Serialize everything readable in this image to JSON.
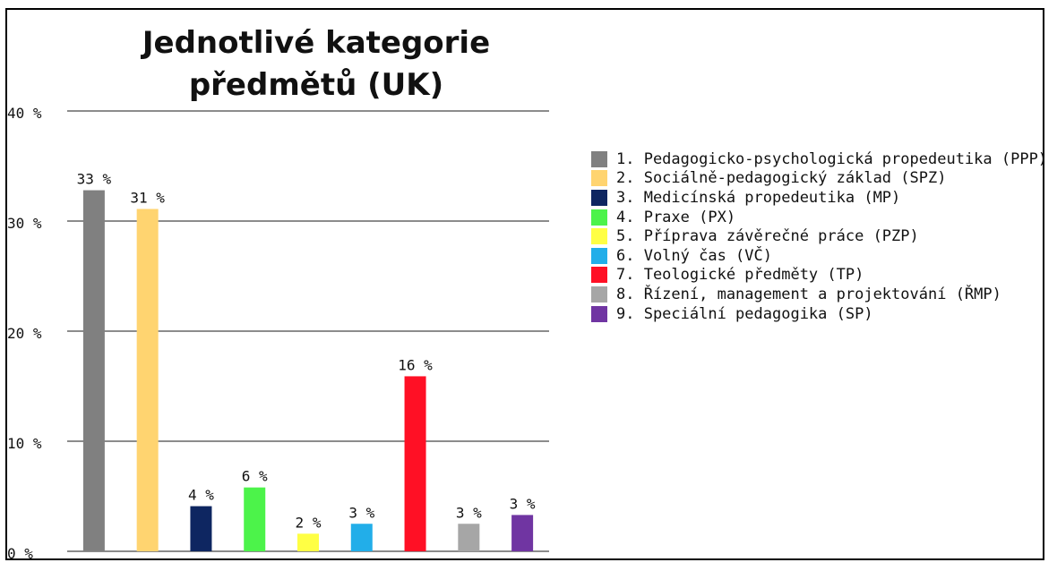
{
  "chart_data": {
    "type": "bar",
    "title": "Jednotlivé kategorie předmětů (UK)",
    "xlabel": "",
    "ylabel": "",
    "ylim": [
      0,
      40
    ],
    "yticks": [
      0,
      10,
      20,
      30,
      40
    ],
    "ytick_labels": [
      "0 %",
      "10 %",
      "20 %",
      "30 %",
      "40 %"
    ],
    "grid": true,
    "legend_position": "right",
    "categories": [
      "1. Pedagogicko-psychologická propedeutika (PPP)",
      "2. Sociálně-pedagogický základ (SPZ)",
      "3. Medicínská propedeutika (MP)",
      "4. Praxe (PX)",
      "5. Příprava závěrečné práce (PZP)",
      "6. Volný čas (VČ)",
      "7. Teologické předměty (TP)",
      "8. Řízení, management a projektování (ŘMP)",
      "9. Speciální pedagogika (SP)"
    ],
    "values": [
      32.8,
      31.1,
      4.1,
      5.8,
      1.6,
      2.5,
      15.9,
      2.5,
      3.3
    ],
    "data_labels": [
      "33 %",
      "31 %",
      "4 %",
      "6 %",
      "2 %",
      "3 %",
      "16 %",
      "3 %",
      "3 %"
    ],
    "colors": [
      "#808080",
      "#ffd470",
      "#0e2661",
      "#4cf34a",
      "#ffff44",
      "#22aee9",
      "#ff1025",
      "#a6a6a6",
      "#7035a2"
    ]
  }
}
